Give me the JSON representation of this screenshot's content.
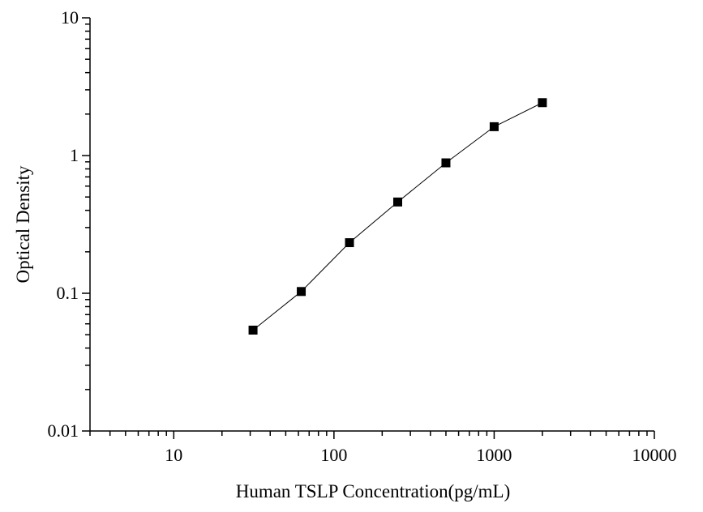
{
  "chart_data": {
    "type": "scatter",
    "title": "",
    "xlabel": "Human TSLP Concentration(pg/mL)",
    "ylabel": "Optical Density",
    "x_scale": "log",
    "y_scale": "log",
    "xlim": [
      3,
      10000
    ],
    "ylim": [
      0.01,
      10
    ],
    "x_ticks": [
      {
        "value": 10,
        "label": "10"
      },
      {
        "value": 100,
        "label": "100"
      },
      {
        "value": 1000,
        "label": "1000"
      },
      {
        "value": 10000,
        "label": "10000"
      }
    ],
    "y_ticks": [
      {
        "value": 0.01,
        "label": "0.01"
      },
      {
        "value": 0.1,
        "label": "0.1"
      },
      {
        "value": 1,
        "label": "1"
      },
      {
        "value": 10,
        "label": "10"
      }
    ],
    "grid": false,
    "legend": "none",
    "series": [
      {
        "x": [
          31.25,
          62.5,
          125,
          250,
          500,
          1000,
          2000
        ],
        "y": [
          0.054,
          0.103,
          0.233,
          0.46,
          0.885,
          1.62,
          2.42
        ],
        "marker": "square",
        "connect": "line",
        "color": "#000000"
      }
    ]
  }
}
